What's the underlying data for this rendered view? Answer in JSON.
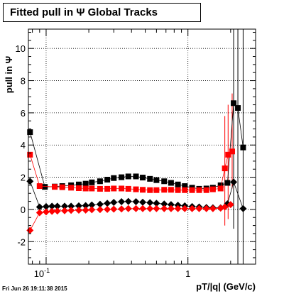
{
  "chart_data": {
    "type": "scatter",
    "title": "Fitted pull in  Ψ   Global Tracks",
    "xlabel": "pT/|q| (GeV/c)",
    "ylabel": "pull in Ψ",
    "xscale": "log",
    "xlim": [
      0.075,
      3.0
    ],
    "ylim": [
      -3.4,
      11.2
    ],
    "grid": true,
    "x_tick_labels": [
      "10^-1",
      "1"
    ],
    "y_tick_labels": [
      "-2",
      "0",
      "2",
      "4",
      "6",
      "8",
      "10"
    ],
    "series": [
      {
        "color": "#000000",
        "marker": "square",
        "x": [
          0.077,
          0.098,
          0.115,
          0.13,
          0.15,
          0.17,
          0.19,
          0.21,
          0.24,
          0.27,
          0.3,
          0.34,
          0.38,
          0.43,
          0.48,
          0.54,
          0.6,
          0.68,
          0.76,
          0.85,
          0.95,
          1.07,
          1.2,
          1.35,
          1.5,
          1.7,
          1.9,
          2.1,
          2.25,
          2.45
        ],
        "y": [
          4.8,
          1.4,
          1.42,
          1.45,
          1.5,
          1.55,
          1.6,
          1.68,
          1.75,
          1.85,
          1.95,
          2.0,
          2.05,
          2.05,
          1.98,
          1.9,
          1.82,
          1.75,
          1.65,
          1.55,
          1.45,
          1.35,
          1.28,
          1.3,
          1.35,
          1.5,
          1.65,
          6.6,
          6.3,
          3.85
        ]
      },
      {
        "color": "#ff0000",
        "marker": "square",
        "x": [
          0.077,
          0.09,
          0.115,
          0.13,
          0.15,
          0.17,
          0.19,
          0.21,
          0.24,
          0.27,
          0.3,
          0.34,
          0.38,
          0.43,
          0.48,
          0.54,
          0.6,
          0.68,
          0.76,
          0.85,
          0.95,
          1.07,
          1.2,
          1.35,
          1.5,
          1.7,
          1.82,
          1.92,
          2.05
        ],
        "y": [
          3.4,
          1.45,
          1.4,
          1.38,
          1.35,
          1.32,
          1.3,
          1.3,
          1.28,
          1.28,
          1.3,
          1.3,
          1.28,
          1.25,
          1.22,
          1.2,
          1.2,
          1.22,
          1.22,
          1.2,
          1.2,
          1.2,
          1.2,
          1.2,
          1.25,
          1.3,
          2.55,
          3.4,
          3.6
        ]
      },
      {
        "color": "#000000",
        "marker": "diamond",
        "x": [
          0.077,
          0.09,
          0.1,
          0.11,
          0.12,
          0.135,
          0.15,
          0.17,
          0.19,
          0.21,
          0.24,
          0.27,
          0.3,
          0.34,
          0.38,
          0.43,
          0.48,
          0.54,
          0.6,
          0.68,
          0.76,
          0.85,
          0.95,
          1.07,
          1.2,
          1.35,
          1.5,
          1.7,
          1.9,
          2.1,
          2.45
        ],
        "y": [
          1.75,
          0.15,
          0.18,
          0.2,
          0.2,
          0.2,
          0.2,
          0.22,
          0.24,
          0.28,
          0.32,
          0.38,
          0.44,
          0.48,
          0.5,
          0.48,
          0.45,
          0.42,
          0.38,
          0.34,
          0.3,
          0.26,
          0.22,
          0.18,
          0.15,
          0.12,
          0.1,
          0.1,
          0.35,
          1.7,
          0.05
        ]
      },
      {
        "color": "#ff0000",
        "marker": "diamond",
        "x": [
          0.077,
          0.09,
          0.1,
          0.11,
          0.12,
          0.135,
          0.15,
          0.17,
          0.19,
          0.21,
          0.24,
          0.27,
          0.3,
          0.34,
          0.38,
          0.43,
          0.48,
          0.54,
          0.6,
          0.68,
          0.76,
          0.85,
          0.95,
          1.07,
          1.2,
          1.35,
          1.5,
          1.7,
          1.82,
          2.0
        ],
        "y": [
          -1.3,
          -0.2,
          -0.15,
          -0.12,
          -0.1,
          -0.08,
          -0.06,
          -0.05,
          -0.04,
          -0.02,
          -0.01,
          0.0,
          0.02,
          0.03,
          0.05,
          0.05,
          0.05,
          0.05,
          0.05,
          0.05,
          0.05,
          0.05,
          0.05,
          0.05,
          0.05,
          0.05,
          0.05,
          0.08,
          0.15,
          0.3
        ]
      }
    ]
  },
  "footer_text": "Fri Jun 26 19:11:38 2015"
}
